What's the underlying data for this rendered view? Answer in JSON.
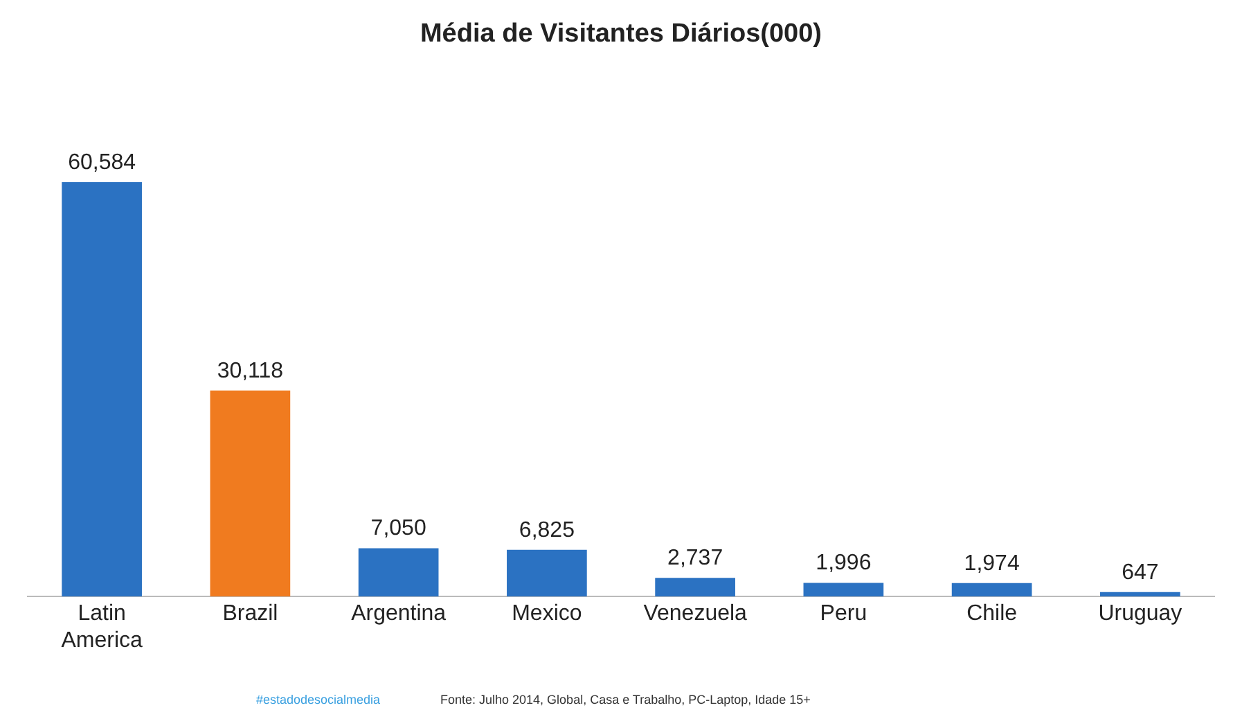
{
  "chart_data": {
    "type": "bar",
    "title": "Média de Visitantes Diários(000)",
    "categories": [
      [
        "Latin",
        "America"
      ],
      "Brazil",
      "Argentina",
      "Mexico",
      "Venezuela",
      "Peru",
      "Chile",
      "Uruguay"
    ],
    "values": [
      60584,
      30118,
      7050,
      6825,
      2737,
      1996,
      1974,
      647
    ],
    "colors": [
      "#2b72c2",
      "#f07b1f",
      "#2b72c2",
      "#2b72c2",
      "#2b72c2",
      "#2b72c2",
      "#2b72c2",
      "#2b72c2"
    ],
    "value_labels": [
      "60,584",
      "30,118",
      "7,050",
      "6,825",
      "2,737",
      "1,996",
      "1,974",
      "647"
    ],
    "tick_labels": "x",
    "grid": false,
    "legend": false,
    "annotations": [
      "#estadodesocialmedia",
      "Fonte: Julho 2014, Global, Casa e Trabalho, PC-Laptop, Idade 15+"
    ]
  }
}
